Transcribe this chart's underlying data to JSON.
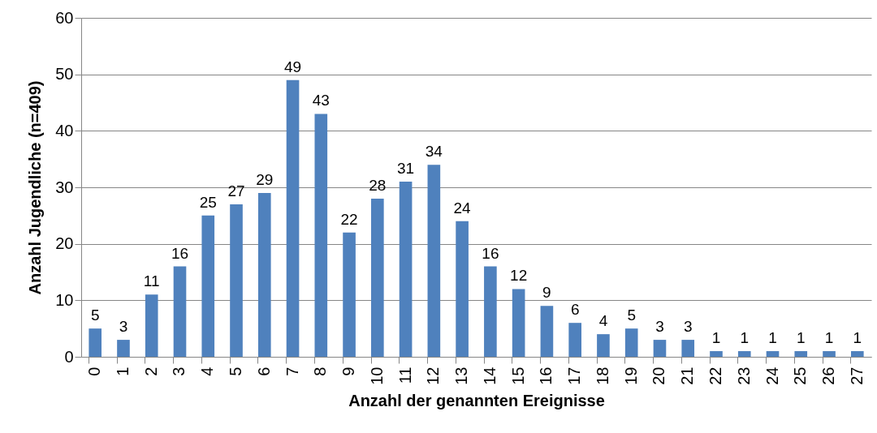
{
  "chart_data": {
    "type": "bar",
    "xlabel": "Anzahl der genannten Ereignisse",
    "ylabel": "Anzahl Jugendliche (n=409)",
    "categories": [
      "0",
      "1",
      "2",
      "3",
      "4",
      "5",
      "6",
      "7",
      "8",
      "9",
      "10",
      "11",
      "12",
      "13",
      "14",
      "15",
      "16",
      "17",
      "18",
      "19",
      "20",
      "21",
      "22",
      "23",
      "24",
      "25",
      "26",
      "27"
    ],
    "values": [
      5,
      3,
      11,
      16,
      25,
      27,
      29,
      49,
      43,
      22,
      28,
      31,
      34,
      24,
      16,
      12,
      9,
      6,
      4,
      5,
      3,
      3,
      1,
      1,
      1,
      1,
      1,
      1
    ],
    "color": "#4f81bd",
    "ylim": [
      0,
      60
    ],
    "yticks": [
      0,
      10,
      20,
      30,
      40,
      50,
      60
    ],
    "grid": "y",
    "data_labels": true
  }
}
